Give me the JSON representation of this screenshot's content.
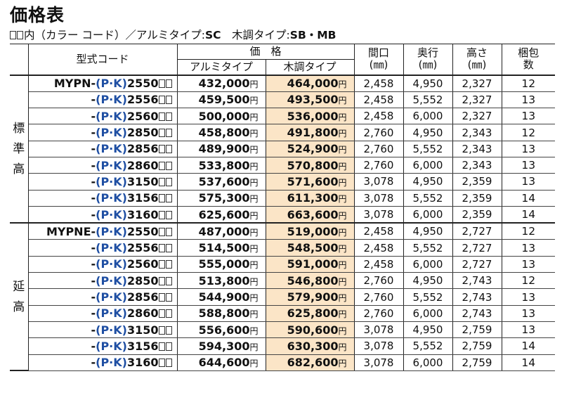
{
  "title": "価格表",
  "subtitle": {
    "prefix": "内（カラー コード）／アルミタイプ:",
    "alu_code": "SC",
    "wood_label": "　木調タイプ:",
    "wood_code": "SB・MB"
  },
  "headers": {
    "model_code": "型式コード",
    "price": "価　格",
    "alu": "アルミタイプ",
    "wood": "木調タイプ",
    "width": "間口",
    "depth": "奥行",
    "height": "高さ",
    "unit": "(㎜)",
    "packages": "梱包数"
  },
  "currency": "円",
  "color_placeholder": "(P·K)",
  "groups": [
    {
      "label": "標準高",
      "model": "MYPN-",
      "rows": [
        {
          "size": "2550",
          "alu": "432,000",
          "wood": "464,000",
          "width": "2,458",
          "depth": "4,950",
          "height": "2,327",
          "packages": "12"
        },
        {
          "size": "2556",
          "alu": "459,500",
          "wood": "493,500",
          "width": "2,458",
          "depth": "5,552",
          "height": "2,327",
          "packages": "13"
        },
        {
          "size": "2560",
          "alu": "500,000",
          "wood": "536,000",
          "width": "2,458",
          "depth": "6,000",
          "height": "2,327",
          "packages": "13"
        },
        {
          "size": "2850",
          "alu": "458,800",
          "wood": "491,800",
          "width": "2,760",
          "depth": "4,950",
          "height": "2,343",
          "packages": "12"
        },
        {
          "size": "2856",
          "alu": "489,900",
          "wood": "524,900",
          "width": "2,760",
          "depth": "5,552",
          "height": "2,343",
          "packages": "13"
        },
        {
          "size": "2860",
          "alu": "533,800",
          "wood": "570,800",
          "width": "2,760",
          "depth": "6,000",
          "height": "2,343",
          "packages": "13"
        },
        {
          "size": "3150",
          "alu": "537,600",
          "wood": "571,600",
          "width": "3,078",
          "depth": "4,950",
          "height": "2,359",
          "packages": "13"
        },
        {
          "size": "3156",
          "alu": "575,300",
          "wood": "611,300",
          "width": "3,078",
          "depth": "5,552",
          "height": "2,359",
          "packages": "14"
        },
        {
          "size": "3160",
          "alu": "625,600",
          "wood": "663,600",
          "width": "3,078",
          "depth": "6,000",
          "height": "2,359",
          "packages": "14"
        }
      ]
    },
    {
      "label": "延高",
      "model": "MYPNE-",
      "rows": [
        {
          "size": "2550",
          "alu": "487,000",
          "wood": "519,000",
          "width": "2,458",
          "depth": "4,950",
          "height": "2,727",
          "packages": "12"
        },
        {
          "size": "2556",
          "alu": "514,500",
          "wood": "548,500",
          "width": "2,458",
          "depth": "5,552",
          "height": "2,727",
          "packages": "13"
        },
        {
          "size": "2560",
          "alu": "555,000",
          "wood": "591,000",
          "width": "2,458",
          "depth": "6,000",
          "height": "2,727",
          "packages": "13"
        },
        {
          "size": "2850",
          "alu": "513,800",
          "wood": "546,800",
          "width": "2,760",
          "depth": "4,950",
          "height": "2,743",
          "packages": "12"
        },
        {
          "size": "2856",
          "alu": "544,900",
          "wood": "579,900",
          "width": "2,760",
          "depth": "5,552",
          "height": "2,743",
          "packages": "13"
        },
        {
          "size": "2860",
          "alu": "588,800",
          "wood": "625,800",
          "width": "2,760",
          "depth": "6,000",
          "height": "2,743",
          "packages": "13"
        },
        {
          "size": "3150",
          "alu": "556,600",
          "wood": "590,600",
          "width": "3,078",
          "depth": "4,950",
          "height": "2,759",
          "packages": "13"
        },
        {
          "size": "3156",
          "alu": "594,300",
          "wood": "630,300",
          "width": "3,078",
          "depth": "5,552",
          "height": "2,759",
          "packages": "14"
        },
        {
          "size": "3160",
          "alu": "644,600",
          "wood": "682,600",
          "width": "3,078",
          "depth": "6,000",
          "height": "2,759",
          "packages": "14"
        }
      ]
    }
  ]
}
